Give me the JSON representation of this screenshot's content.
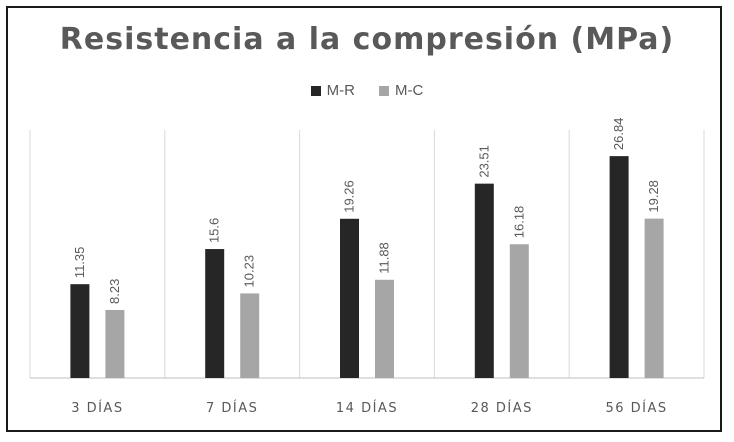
{
  "chart_data": {
    "type": "bar",
    "title": "Resistencia a la compresión (MPa)",
    "categories": [
      "3 DÍAS",
      "7 DÍAS",
      "14 DÍAS",
      "28 DÍAS",
      "56 DÍAS"
    ],
    "series": [
      {
        "name": "M-R",
        "color": "#262626",
        "values": [
          11.35,
          15.6,
          19.26,
          23.51,
          26.84
        ]
      },
      {
        "name": "M-C",
        "color": "#a6a6a6",
        "values": [
          8.23,
          10.23,
          11.88,
          16.18,
          19.28
        ]
      }
    ],
    "ylim": [
      0,
      30
    ],
    "grid": false,
    "legend_position": "top",
    "data_labels": true
  }
}
